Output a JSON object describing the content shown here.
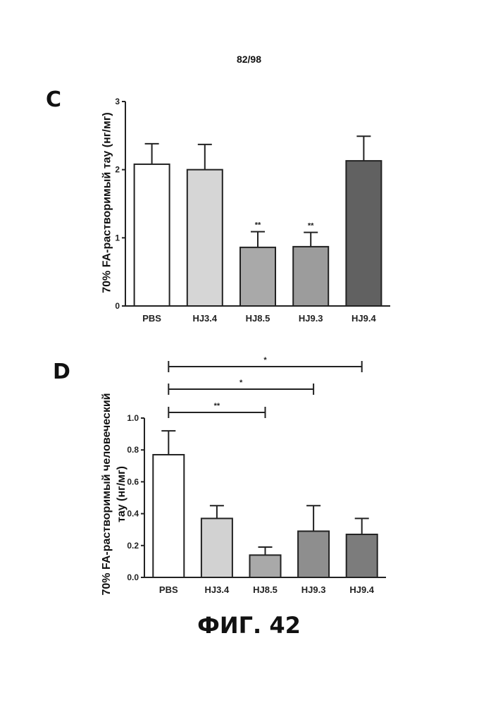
{
  "page_number": "82/98",
  "figure_caption": "ФИГ. 42",
  "chart_data": [
    {
      "panel": "C",
      "type": "bar",
      "ylabel": "70% FA-растворимый тау (нг/мг)",
      "ylim": [
        0,
        3
      ],
      "yticks": [
        0,
        1,
        2,
        3
      ],
      "ytick_labels": [
        "0",
        "1",
        "2",
        "3"
      ],
      "categories": [
        "PBS",
        "HJ3.4",
        "HJ8.5",
        "HJ9.3",
        "HJ9.4"
      ],
      "values": [
        2.08,
        2.0,
        0.86,
        0.87,
        2.13
      ],
      "errors": [
        0.3,
        0.37,
        0.23,
        0.21,
        0.36
      ],
      "bar_colors": [
        "#ffffff",
        "#d6d6d6",
        "#a9a9a9",
        "#9c9c9c",
        "#616161"
      ],
      "annotations": [
        "",
        "",
        "**",
        "**",
        ""
      ],
      "grid": false
    },
    {
      "panel": "D",
      "type": "bar",
      "ylabel": "70% FA-растворимый человеческий тау (нг/мг)",
      "ylabel_lines": [
        "70% FA-растворимый человеческий",
        "тау (нг/мг)"
      ],
      "ylim": [
        0,
        1.0
      ],
      "yticks": [
        0,
        0.2,
        0.4,
        0.6,
        0.8,
        1.0
      ],
      "ytick_labels": [
        "0.0",
        "0.2",
        "0.4",
        "0.6",
        "0.8",
        "1.0"
      ],
      "categories": [
        "PBS",
        "HJ3.4",
        "HJ8.5",
        "HJ9.3",
        "HJ9.4"
      ],
      "values": [
        0.77,
        0.37,
        0.14,
        0.29,
        0.27
      ],
      "errors": [
        0.15,
        0.08,
        0.05,
        0.16,
        0.1
      ],
      "bar_colors": [
        "#ffffff",
        "#d2d2d2",
        "#a9a9a9",
        "#8e8e8e",
        "#7c7c7c"
      ],
      "significance": [
        {
          "from": "PBS",
          "to": "HJ8.5",
          "label": "**"
        },
        {
          "from": "PBS",
          "to": "HJ9.3",
          "label": "*"
        },
        {
          "from": "PBS",
          "to": "HJ9.4",
          "label": "*"
        }
      ],
      "grid": false
    }
  ]
}
